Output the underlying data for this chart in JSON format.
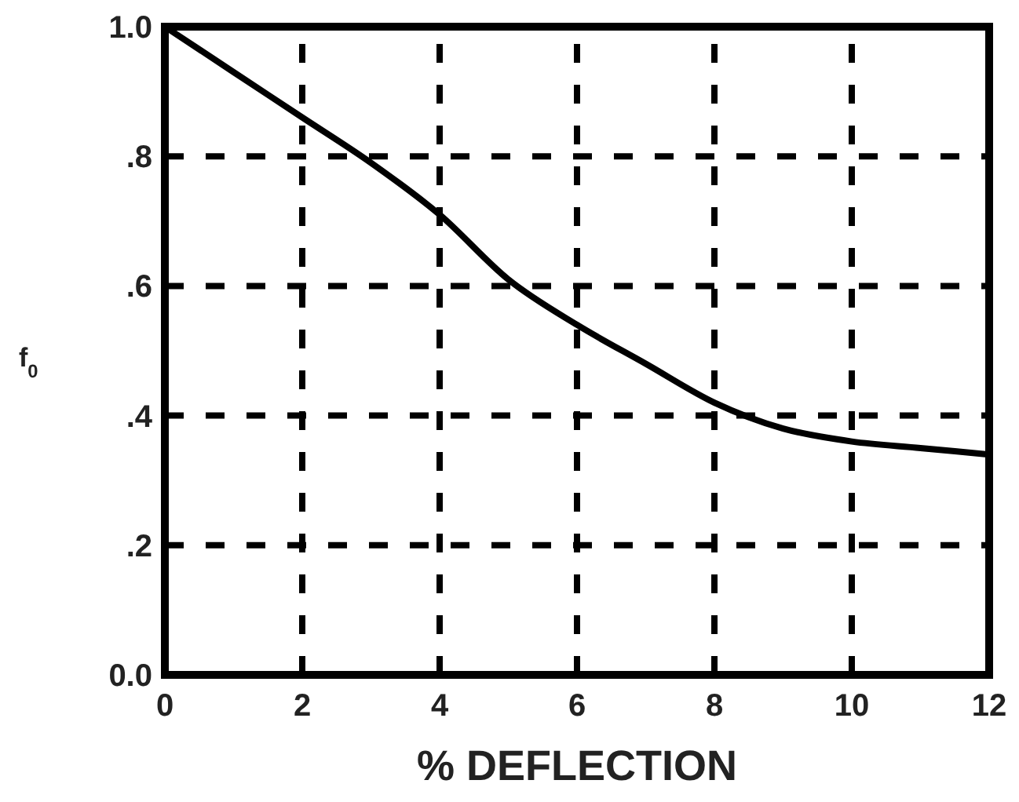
{
  "chart_data": {
    "type": "line",
    "xlabel": "% DEFLECTION",
    "ylabel": "f$_{0}$",
    "x": [
      0,
      1,
      2,
      3,
      4,
      5,
      6,
      7,
      8,
      9,
      10,
      11,
      12
    ],
    "series": [
      {
        "color": "#000000",
        "values": [
          1.0,
          0.93,
          0.86,
          0.79,
          0.71,
          0.61,
          0.54,
          0.48,
          0.42,
          0.38,
          0.36,
          0.35,
          0.34
        ]
      }
    ],
    "xlim": [
      0,
      12
    ],
    "xticks": [
      0,
      2,
      4,
      6,
      8,
      10,
      12
    ],
    "ylim": [
      0,
      1
    ],
    "yticks": [
      {
        "value": 0,
        "label": "0.0"
      },
      {
        "value": 0.2,
        "label": ".2"
      },
      {
        "value": 0.4,
        "label": ".4"
      },
      {
        "value": 0.6,
        "label": ".6"
      },
      {
        "value": 0.8,
        "label": ".8"
      },
      {
        "value": 1,
        "label": "1.0"
      }
    ],
    "grid": true,
    "line_style": "solid",
    "marker": "none"
  }
}
